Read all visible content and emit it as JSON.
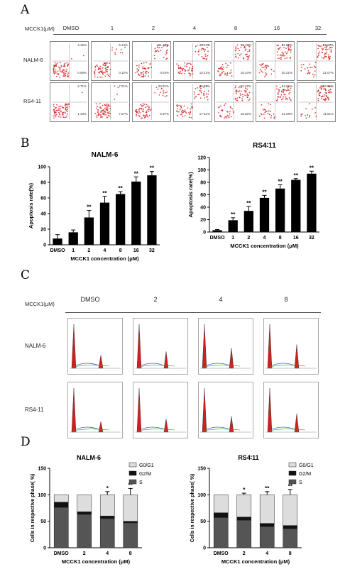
{
  "panels": {
    "a": "A",
    "b": "B",
    "c": "C",
    "d": "D"
  },
  "flow": {
    "header_label": "MCCK1(μM)",
    "conc": [
      "DMSO",
      "1",
      "2",
      "4",
      "8",
      "16",
      "32"
    ],
    "rows": [
      {
        "name": "NALM-6",
        "upper_right": [
          "4.16%",
          "9.14%",
          "31.10%",
          "30.61%",
          "55.10%",
          "61.50%",
          "67.67%"
        ],
        "lower_right": [
          "0.69%",
          "0.12%",
          "0.04%",
          "10.21%",
          "16.10%",
          "20.21%",
          "21.07%"
        ]
      },
      {
        "name": "RS4-11",
        "upper_right": [
          "2.71%",
          "7.01%",
          "20.91%",
          "36.82%",
          "52.49%",
          "64.69%",
          "82.66%"
        ],
        "lower_right": [
          "1.43%",
          "7.27%",
          "6.97%",
          "17.61%",
          "18.52%",
          "21.29%",
          "11.61%"
        ]
      }
    ]
  },
  "cellcycle": {
    "header_label": "MCCK1(μM)",
    "conc": [
      "DMSO",
      "2",
      "4",
      "8"
    ],
    "rows": [
      "NALM-6",
      "RS4-11"
    ]
  },
  "chart_data": [
    {
      "type": "bar",
      "title": "NALM-6",
      "categories": [
        "DMSO",
        "1",
        "2",
        "4",
        "8",
        "16",
        "32"
      ],
      "values": [
        8,
        16,
        35,
        54,
        65,
        81,
        89
      ],
      "errors": [
        5,
        3,
        9,
        8,
        3,
        6,
        5
      ],
      "significance": [
        "",
        "",
        "**",
        "**",
        "**",
        "**",
        "**"
      ],
      "xlabel": "MCCK1 concentration (μM)",
      "ylabel": "Apoptosis rate(%)",
      "ylim": [
        0,
        100
      ],
      "yticks": [
        0,
        20,
        40,
        60,
        80,
        100
      ],
      "color": "#000000"
    },
    {
      "type": "bar",
      "title": "RS4∶11",
      "categories": [
        "DMSO",
        "1",
        "2",
        "4",
        "8",
        "16",
        "32"
      ],
      "values": [
        3,
        19,
        34,
        55,
        70,
        84,
        94
      ],
      "errors": [
        1,
        4,
        7,
        4,
        6,
        2,
        4
      ],
      "significance": [
        "",
        "**",
        "**",
        "**",
        "**",
        "**",
        "**"
      ],
      "xlabel": "MCCK1 concentration (μM)",
      "ylabel": "Apoptosis rate(%)",
      "ylim": [
        0,
        120
      ],
      "yticks": [
        0,
        20,
        40,
        60,
        80,
        100,
        120
      ],
      "color": "#000000"
    },
    {
      "type": "bar",
      "stacked": true,
      "title": "NALM-6",
      "categories": [
        "DMSO",
        "2",
        "4",
        "8"
      ],
      "series": [
        {
          "name": "S",
          "values": [
            76,
            63,
            55,
            47
          ],
          "color": "#555555"
        },
        {
          "name": "G2/M",
          "values": [
            10,
            5,
            5,
            3
          ],
          "color": "#111111"
        },
        {
          "name": "G0/G1",
          "values": [
            14,
            32,
            40,
            50
          ],
          "color": "#dddddd"
        }
      ],
      "top_errors": [
        0,
        0,
        6,
        12
      ],
      "significance": [
        "",
        "",
        "*",
        "**"
      ],
      "xlabel": "MCCK1 concentration (μM)",
      "ylabel": "Cells in respective phase( %)",
      "ylim": [
        0,
        150
      ],
      "yticks": [
        0,
        50,
        100,
        150
      ]
    },
    {
      "type": "bar",
      "stacked": true,
      "title": "RS4∶11",
      "categories": [
        "DMSO",
        "2",
        "4",
        "8"
      ],
      "series": [
        {
          "name": "S",
          "values": [
            57,
            52,
            40,
            36
          ],
          "color": "#555555"
        },
        {
          "name": "G2/M",
          "values": [
            9,
            6,
            6,
            6
          ],
          "color": "#111111"
        },
        {
          "name": "G0/G1",
          "values": [
            34,
            42,
            54,
            58
          ],
          "color": "#dddddd"
        }
      ],
      "top_errors": [
        0,
        3,
        6,
        10
      ],
      "significance": [
        "",
        "*",
        "**",
        "**"
      ],
      "xlabel": "MCCK1 concentration (μM)",
      "ylabel": "Cells in respective phase( %)",
      "ylim": [
        0,
        150
      ],
      "yticks": [
        0,
        50,
        100,
        150
      ]
    }
  ]
}
